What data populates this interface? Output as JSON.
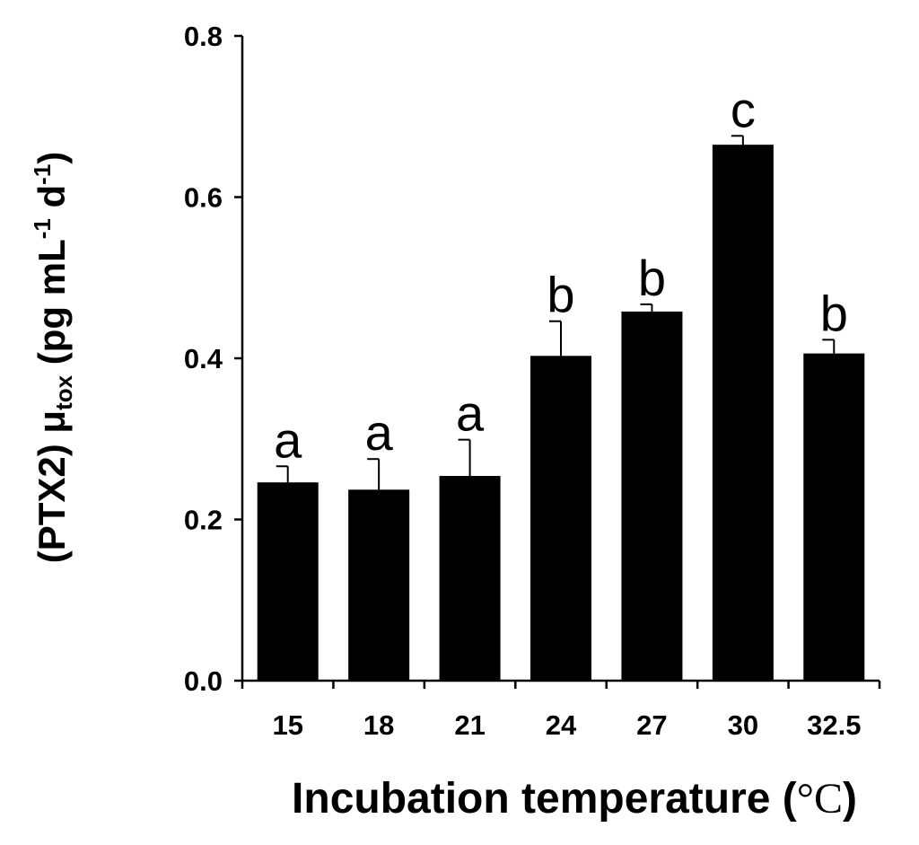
{
  "chart_data": {
    "type": "bar",
    "categories": [
      "15",
      "18",
      "21",
      "24",
      "27",
      "30",
      "32.5"
    ],
    "values": [
      0.246,
      0.237,
      0.254,
      0.403,
      0.458,
      0.665,
      0.406
    ],
    "errors": [
      0.02,
      0.038,
      0.045,
      0.043,
      0.009,
      0.011,
      0.017
    ],
    "significance": [
      "a",
      "a",
      "a",
      "b",
      "b",
      "c",
      "b"
    ],
    "ylim": [
      0.0,
      0.8
    ],
    "yticks": [
      "0.0",
      "0.2",
      "0.4",
      "0.6",
      "0.8"
    ],
    "xlabel": "Incubation temperature (",
    "xlabel_unit": "°C",
    "xlabel_close": ")",
    "ylabel": {
      "prefix": "(PTX2) μ",
      "sub": "tox",
      "mid1": " (pg mL",
      "sup1": "-1",
      "mid2": " d",
      "sup2": "-1",
      "suffix": ")"
    },
    "bar_color": "#000000",
    "grid": false
  }
}
